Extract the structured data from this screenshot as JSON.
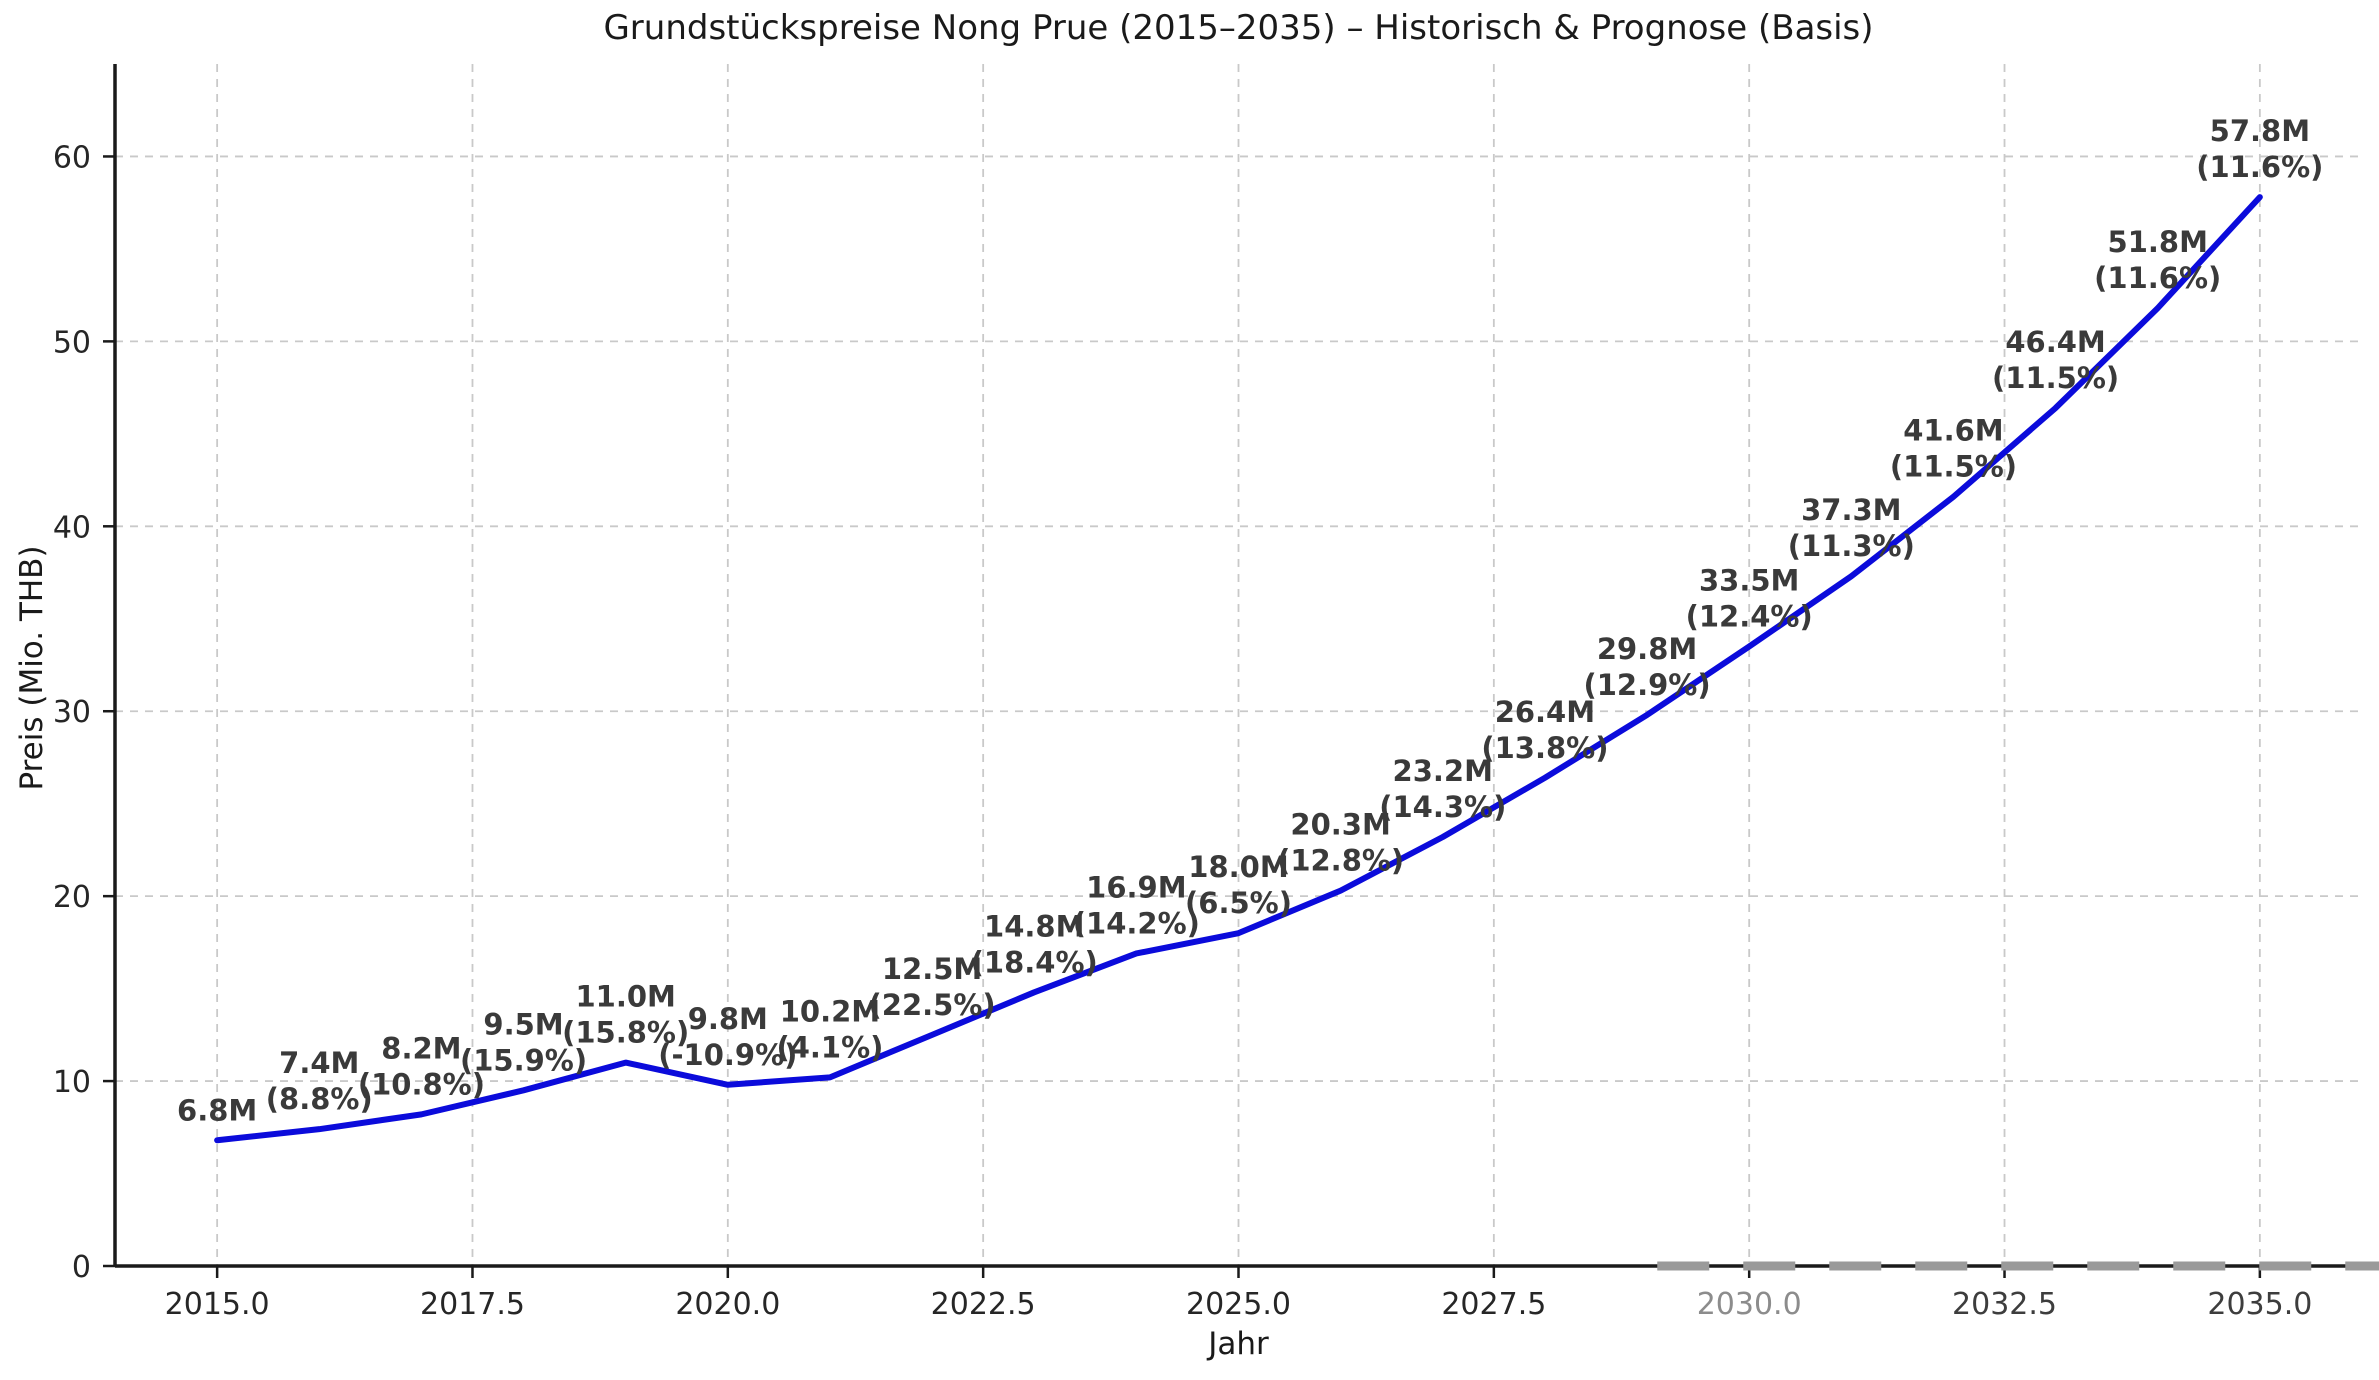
{
  "chart_data": {
    "type": "line",
    "title": "Grundstückspreise Nong Prue (2015–2035) – Historisch & Prognose (Basis)",
    "xlabel": "Jahr",
    "ylabel": "Preis (Mio. THB)",
    "x": [
      2015,
      2016,
      2017,
      2018,
      2019,
      2020,
      2021,
      2022,
      2023,
      2024,
      2025,
      2026,
      2027,
      2028,
      2029,
      2030,
      2031,
      2032,
      2033,
      2034,
      2035
    ],
    "values": [
      6.8,
      7.4,
      8.2,
      9.5,
      11.0,
      9.8,
      10.2,
      12.5,
      14.8,
      16.9,
      18.0,
      20.3,
      23.2,
      26.4,
      29.8,
      33.5,
      37.3,
      41.6,
      46.4,
      51.8,
      57.8
    ],
    "point_labels": [
      "6.8M",
      "7.4M",
      "8.2M",
      "9.5M",
      "11.0M",
      "9.8M",
      "10.2M",
      "12.5M",
      "14.8M",
      "16.9M",
      "18.0M",
      "20.3M",
      "23.2M",
      "26.4M",
      "29.8M",
      "33.5M",
      "37.3M",
      "41.6M",
      "46.4M",
      "51.8M",
      "57.8M"
    ],
    "pct_labels": [
      null,
      "(8.8%)",
      "(10.8%)",
      "(15.9%)",
      "(15.8%)",
      "(-10.9%)",
      "(4.1%)",
      "(22.5%)",
      "(18.4%)",
      "(14.2%)",
      "(6.5%)",
      "(12.8%)",
      "(14.3%)",
      "(13.8%)",
      "(12.9%)",
      "(12.4%)",
      "(11.3%)",
      "(11.5%)",
      "(11.5%)",
      "(11.6%)",
      "(11.6%)"
    ],
    "xticks": [
      2015,
      2017.5,
      2020,
      2022.5,
      2025,
      2027.5,
      2030,
      2032.5,
      2035
    ],
    "xtick_labels": [
      "2015.0",
      "2017.5",
      "2020.0",
      "2022.5",
      "2025.0",
      "2027.5",
      "2030.0",
      "2032.5",
      "2035.0"
    ],
    "xtick_colors": [
      "#262626",
      "#262626",
      "#262626",
      "#262626",
      "#262626",
      "#262626",
      "#8c8c8c",
      "#3d3d3d",
      "#3d3d3d"
    ],
    "yticks": [
      0,
      10,
      20,
      30,
      40,
      50,
      60
    ],
    "ytick_labels": [
      "0",
      "10",
      "20",
      "30",
      "40",
      "50",
      "60"
    ],
    "xlim": [
      2014,
      2036
    ],
    "ylim": [
      0,
      65
    ],
    "grid": true,
    "legend": null,
    "line_color": "#0b0bdb",
    "annotation_color": "#3a3a3a",
    "grid_color": "#c9c9c9",
    "axis_color": "#1a1a1a",
    "tick_label_color": "#262626",
    "artifact_overlay": {
      "color": "#9a9a9a",
      "start_year": 2029.1
    }
  }
}
